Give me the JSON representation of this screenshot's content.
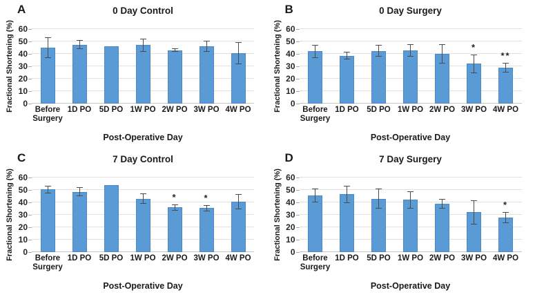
{
  "figure": {
    "y_axis_label": "Fractional Shortening (%)",
    "x_axis_label": "Post-Operative Day",
    "colors": {
      "bar_fill": "#5B9BD5",
      "bar_border": "#4d88c6",
      "gridline": "#e2e2e2",
      "axis_line": "#c6c6c6",
      "tick_mark": "#a8a8a8",
      "error_bar": "#4a4a4a",
      "text": "#1f1f1f"
    }
  },
  "chart_data": [
    {
      "type": "bar",
      "panel": "A",
      "title": "0 Day Control",
      "categories": [
        "Before Surgery",
        "1D PO",
        "5D PO",
        "1W PO",
        "2W PO",
        "3W PO",
        "4W PO"
      ],
      "values": [
        45,
        47.5,
        46,
        47,
        43,
        46,
        40.5
      ],
      "errors": [
        8.5,
        3.5,
        0,
        5.5,
        1.5,
        4.5,
        9
      ],
      "significance": [
        "",
        "",
        "",
        "",
        "",
        "",
        ""
      ],
      "xlabel": "Post-Operative Day",
      "ylabel": "Fractional Shortening (%)",
      "ylim": [
        0,
        60
      ],
      "yticks": [
        0,
        10,
        20,
        30,
        40,
        50,
        60
      ],
      "grid": true,
      "legend": "none"
    },
    {
      "type": "bar",
      "panel": "B",
      "title": "0 Day Surgery",
      "categories": [
        "Before Surgery",
        "1D PO",
        "5D PO",
        "1W PO",
        "2W PO",
        "3W PO",
        "4W PO"
      ],
      "values": [
        42,
        38.5,
        42.5,
        43,
        40,
        32,
        29
      ],
      "errors": [
        5.5,
        3,
        4.5,
        5,
        8,
        7.5,
        4
      ],
      "significance": [
        "",
        "",
        "",
        "",
        "",
        "*",
        "**"
      ],
      "xlabel": "Post-Operative Day",
      "ylabel": "Fractional Shortening (%)",
      "ylim": [
        0,
        60
      ],
      "yticks": [
        0,
        10,
        20,
        30,
        40,
        50,
        60
      ],
      "grid": true,
      "legend": "none"
    },
    {
      "type": "bar",
      "panel": "C",
      "title": "7 Day Control",
      "categories": [
        "Before Surgery",
        "1D PO",
        "5D PO",
        "1W PO",
        "2W PO",
        "3W PO",
        "4W PO"
      ],
      "values": [
        50.5,
        48.5,
        54,
        43,
        36,
        35.5,
        40.5
      ],
      "errors": [
        3,
        3.5,
        0,
        4,
        2.5,
        2.5,
        6
      ],
      "significance": [
        "",
        "",
        "",
        "",
        "*",
        "*",
        ""
      ],
      "xlabel": "Post-Operative Day",
      "ylabel": "Fractional Shortening (%)",
      "ylim": [
        0,
        60
      ],
      "yticks": [
        0,
        10,
        20,
        30,
        40,
        50,
        60
      ],
      "grid": true,
      "legend": "none"
    },
    {
      "type": "bar",
      "panel": "D",
      "title": "7 Day Surgery",
      "categories": [
        "Before Surgery",
        "1D PO",
        "5D PO",
        "1W PO",
        "2W PO",
        "3W PO",
        "4W PO"
      ],
      "values": [
        45.5,
        46.5,
        43,
        42,
        39,
        32,
        28
      ],
      "errors": [
        5.5,
        7,
        8,
        7,
        4,
        9.5,
        4.5
      ],
      "significance": [
        "",
        "",
        "",
        "",
        "",
        "",
        "*"
      ],
      "xlabel": "Post-Operative Day",
      "ylabel": "Fractional Shortening (%)",
      "ylim": [
        0,
        60
      ],
      "yticks": [
        0,
        10,
        20,
        30,
        40,
        50,
        60
      ],
      "grid": true,
      "legend": "none"
    }
  ]
}
